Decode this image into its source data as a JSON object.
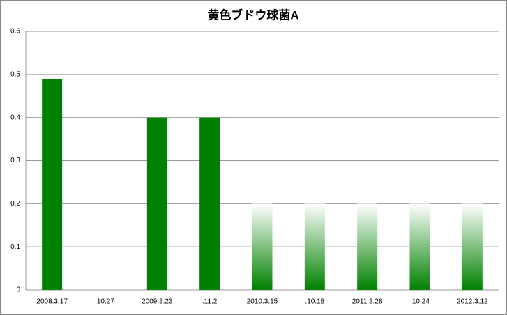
{
  "chart_data": {
    "type": "bar",
    "title": "黄色ブドウ球菌A",
    "categories": [
      "2008.3.17",
      ".10.27",
      "2009.3.23",
      ".11.2",
      "2010.3.15",
      ".10.18",
      "2011.3.28",
      ".10.24",
      "2012.3.12"
    ],
    "values": [
      0.49,
      0,
      0.4,
      0.4,
      0.2,
      0.2,
      0.2,
      0.2,
      0.2
    ],
    "bar_fill": [
      "solid",
      "solid",
      "solid",
      "solid",
      "gradient",
      "gradient",
      "gradient",
      "gradient",
      "gradient"
    ],
    "color": "#008000",
    "ylim": [
      0,
      0.6
    ],
    "yticks": [
      0,
      0.1,
      0.2,
      0.3,
      0.4,
      0.5,
      0.6
    ],
    "grid": true
  }
}
